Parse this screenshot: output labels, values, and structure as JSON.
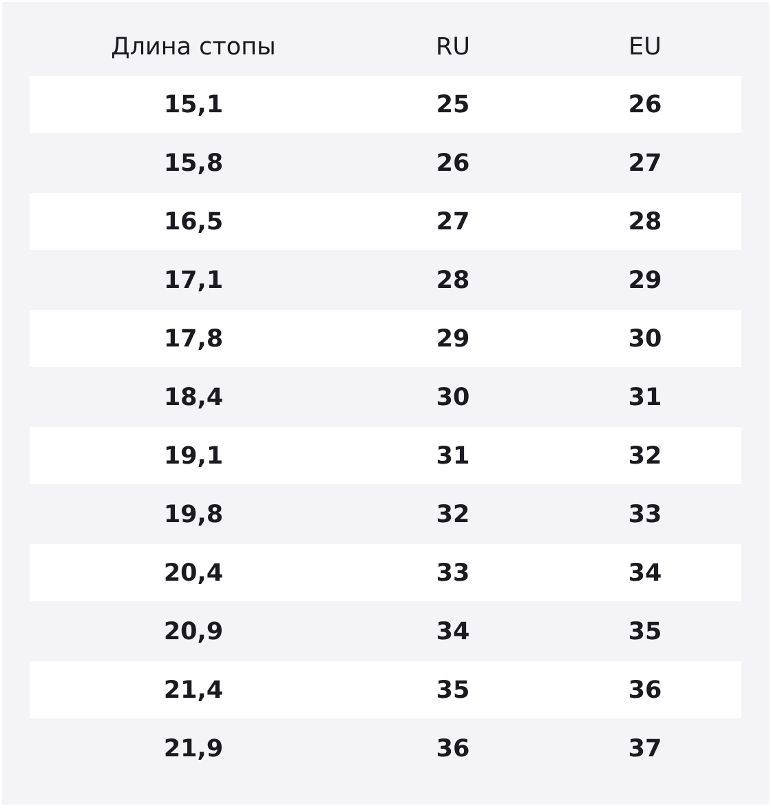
{
  "table": {
    "header": [
      "Длина стопы",
      "RU",
      "EU"
    ],
    "rows": [
      [
        "15,1",
        "25",
        "26"
      ],
      [
        "15,8",
        "26",
        "27"
      ],
      [
        "16,5",
        "27",
        "28"
      ],
      [
        "17,1",
        "28",
        "29"
      ],
      [
        "17,8",
        "29",
        "30"
      ],
      [
        "18,4",
        "30",
        "31"
      ],
      [
        "19,1",
        "31",
        "32"
      ],
      [
        "19,8",
        "32",
        "33"
      ],
      [
        "20,4",
        "33",
        "34"
      ],
      [
        "20,9",
        "34",
        "35"
      ],
      [
        "21,4",
        "35",
        "36"
      ],
      [
        "21,9",
        "36",
        "37"
      ]
    ]
  }
}
